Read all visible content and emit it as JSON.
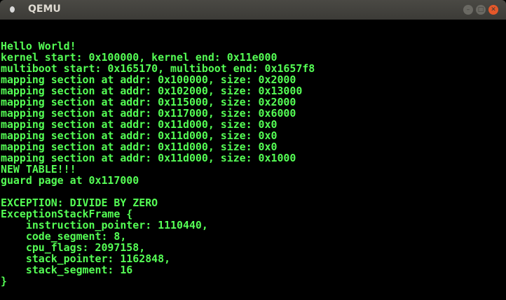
{
  "window": {
    "title": "QEMU",
    "icon": "qemu-app-icon",
    "minimize_icon": "minimize-icon",
    "maximize_icon": "maximize-icon",
    "close_icon": "close-icon"
  },
  "console": {
    "text_color": "#55ff55",
    "background": "#000000",
    "lines": [
      "Hello World!",
      "kernel start: 0x100000, kernel end: 0x11e000",
      "multiboot start: 0x165170, multiboot end: 0x1657f8",
      "mapping section at addr: 0x100000, size: 0x2000",
      "mapping section at addr: 0x102000, size: 0x13000",
      "mapping section at addr: 0x115000, size: 0x2000",
      "mapping section at addr: 0x117000, size: 0x6000",
      "mapping section at addr: 0x11d000, size: 0x0",
      "mapping section at addr: 0x11d000, size: 0x0",
      "mapping section at addr: 0x11d000, size: 0x0",
      "mapping section at addr: 0x11d000, size: 0x1000",
      "NEW TABLE!!!",
      "guard page at 0x117000",
      "",
      "EXCEPTION: DIVIDE BY ZERO",
      "ExceptionStackFrame {",
      "    instruction_pointer: 1110440,",
      "    code_segment: 8,",
      "    cpu_flags: 2097158,",
      "    stack_pointer: 1162848,",
      "    stack_segment: 16",
      "}"
    ]
  }
}
